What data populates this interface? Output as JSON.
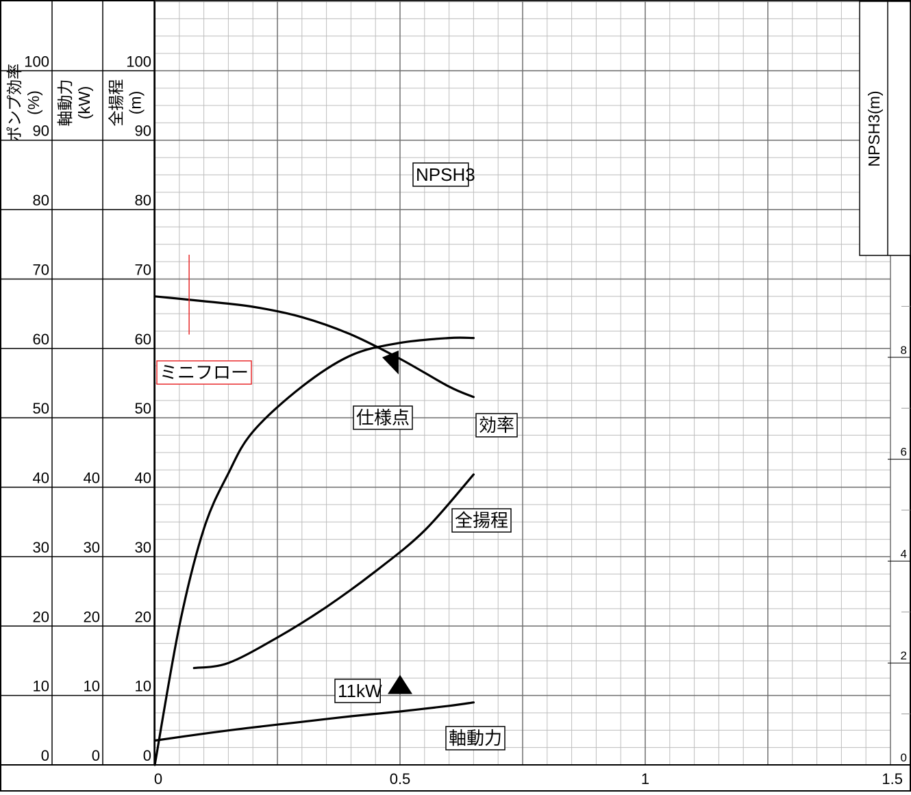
{
  "chart_data": {
    "type": "line",
    "x_ticks": [
      "0",
      "0.5",
      "1",
      "1.5"
    ],
    "xlim": [
      0,
      1.5
    ],
    "columns": [
      {
        "title": "ポンプ効率",
        "unit": "(%)",
        "ticks": [
          "0",
          "10",
          "20",
          "30",
          "40",
          "50",
          "60",
          "70",
          "80",
          "90",
          "100"
        ]
      },
      {
        "title": "軸動力",
        "unit": "(kW)",
        "ticks": [
          "0",
          "10",
          "20",
          "30",
          "40"
        ]
      },
      {
        "title": "全揚程",
        "unit": "(m)",
        "ticks": [
          "0",
          "10",
          "20",
          "30",
          "40",
          "50",
          "60",
          "70",
          "80",
          "90",
          "100"
        ]
      }
    ],
    "right_axis": {
      "title": "NPSH3(m)",
      "ticks": [
        "0",
        "2",
        "4",
        "6",
        "8"
      ],
      "ylim": [
        0,
        10
      ]
    },
    "left_ylim": [
      0,
      110
    ],
    "series": [
      {
        "name": "全揚程",
        "x": [
          0,
          0.1,
          0.2,
          0.3,
          0.4,
          0.5,
          0.6,
          0.65
        ],
        "y": [
          67.5,
          66.8,
          66.0,
          64.5,
          62.0,
          58.5,
          54.5,
          53.0
        ]
      },
      {
        "name": "効率",
        "x": [
          0,
          0.05,
          0.1,
          0.15,
          0.2,
          0.3,
          0.4,
          0.5,
          0.6,
          0.65
        ],
        "y": [
          0,
          20,
          34,
          42,
          48,
          54.5,
          59,
          60.8,
          61.5,
          61.5
        ]
      },
      {
        "name": "軸動力",
        "x": [
          0,
          0.1,
          0.2,
          0.3,
          0.4,
          0.5,
          0.6,
          0.65
        ],
        "y": [
          3.5,
          4.5,
          5.4,
          6.2,
          7.0,
          7.7,
          8.5,
          9.0
        ]
      },
      {
        "name": "NPSH3",
        "axis": "right",
        "x": [
          0.08,
          0.15,
          0.25,
          0.35,
          0.45,
          0.55,
          0.65
        ],
        "y": [
          1.9,
          2.0,
          2.5,
          3.1,
          3.8,
          4.6,
          5.7
        ]
      }
    ],
    "annotations": {
      "mini_flow": {
        "label": "ミニフロー",
        "x": 0.07,
        "color": "#e8292a"
      },
      "spec_point": {
        "label": "仕様点",
        "x": 0.5,
        "y": 59.5
      },
      "motor": {
        "label": "11kW",
        "x": 0.5,
        "y": 11
      }
    },
    "grid": true
  }
}
